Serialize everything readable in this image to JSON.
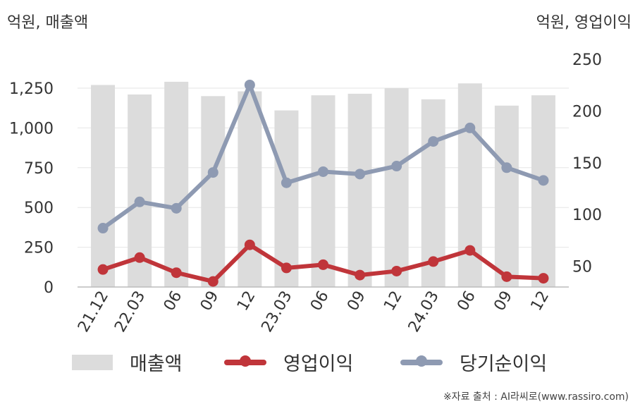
{
  "units": {
    "left": "억원, 매출액",
    "right": "억원, 영업이익"
  },
  "source": "※자료 출처 : AI라씨로(www.rassiro.com)",
  "chart_data": {
    "type": "bar+line",
    "categories": [
      "21.12",
      "22.03",
      "06",
      "09",
      "12",
      "23.03",
      "06",
      "09",
      "12",
      "24.03",
      "06",
      "09",
      "12"
    ],
    "left_axis": {
      "ylim": [
        0,
        1250
      ],
      "ticks": [
        "0",
        "250",
        "500",
        "750",
        "1,000",
        "1,250"
      ],
      "tick_values": [
        0,
        250,
        500,
        750,
        1000,
        1250
      ]
    },
    "right_axis": {
      "ylim": [
        30,
        250
      ],
      "ticks": [
        "50",
        "100",
        "150",
        "200",
        "250"
      ],
      "tick_values": [
        50,
        100,
        150,
        200,
        250
      ]
    },
    "series": [
      {
        "name": "매출액",
        "kind": "bar",
        "axis": "left",
        "color": "#dcdcdc",
        "values": [
          1270,
          1210,
          1290,
          1200,
          1230,
          1110,
          1205,
          1215,
          1250,
          1180,
          1280,
          1140,
          1205
        ]
      },
      {
        "name": "영업이익",
        "kind": "line",
        "axis": "left",
        "color": "#c0353a",
        "values": [
          110,
          185,
          90,
          35,
          265,
          120,
          140,
          75,
          100,
          160,
          230,
          65,
          55
        ]
      },
      {
        "name": "당기순이익",
        "kind": "line",
        "axis": "left",
        "color": "#8e9ab2",
        "values": [
          370,
          535,
          495,
          720,
          1270,
          655,
          725,
          710,
          760,
          915,
          1000,
          750,
          670
        ]
      }
    ],
    "grid": true,
    "legend": "bottom"
  }
}
